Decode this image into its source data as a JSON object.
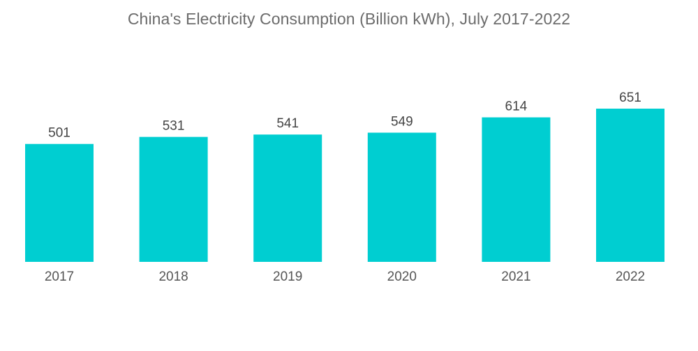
{
  "chart_data": {
    "type": "bar",
    "title": "China's Electricity Consumption (Billion kWh), July 2017-2022",
    "categories": [
      "2017",
      "2018",
      "2019",
      "2020",
      "2021",
      "2022"
    ],
    "values": [
      501,
      531,
      541,
      549,
      614,
      651
    ],
    "data_labels": [
      "501",
      "531",
      "541",
      "549",
      "614",
      "651"
    ],
    "xlabel": "",
    "ylabel": "",
    "ylim": [
      0,
      651
    ],
    "grid": false,
    "legend": "none",
    "colors": {
      "bar": "#00CED1"
    }
  }
}
